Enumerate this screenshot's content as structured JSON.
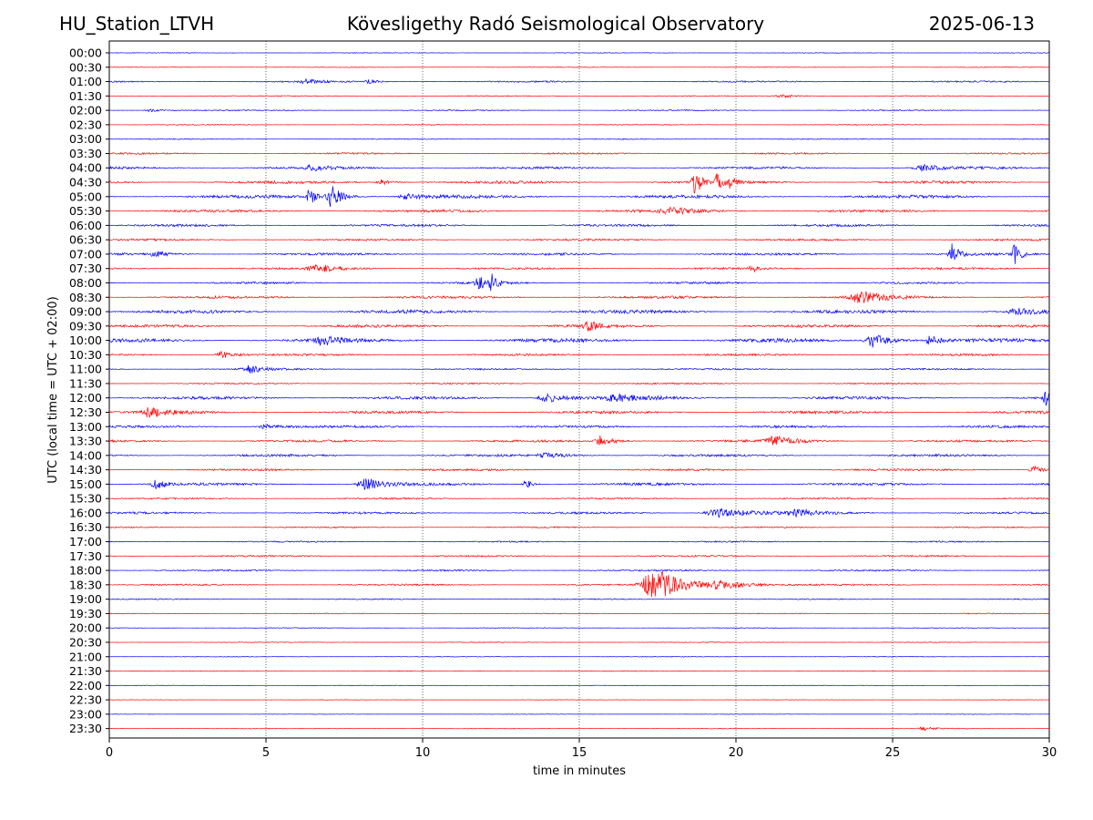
{
  "header": {
    "station": "HU_Station_LTVH",
    "observatory": "Kövesligethy Radó Seismological Observatory",
    "date": "2025-06-13"
  },
  "chart_data": {
    "type": "line",
    "subtype": "helicorder",
    "xlabel": "time in minutes",
    "ylabel": "UTC (local time = UTC + 02:00)",
    "xlim": [
      0,
      30
    ],
    "x_ticks": [
      0,
      5,
      10,
      15,
      20,
      25,
      30
    ],
    "x_tick_labels": [
      "0",
      "5",
      "10",
      "15",
      "20",
      "25",
      "30"
    ],
    "vertical_gridlines_at_minutes": [
      5,
      10,
      15,
      20,
      25
    ],
    "grid": "vertical dotted",
    "row_interval_minutes": 30,
    "row_labels": [
      "00:00",
      "00:30",
      "01:00",
      "01:30",
      "02:00",
      "02:30",
      "03:00",
      "03:30",
      "04:00",
      "04:30",
      "05:00",
      "05:30",
      "06:00",
      "06:30",
      "07:00",
      "07:30",
      "08:00",
      "08:30",
      "09:00",
      "09:30",
      "10:00",
      "10:30",
      "11:00",
      "11:30",
      "12:00",
      "12:30",
      "13:00",
      "13:30",
      "14:00",
      "14:30",
      "15:00",
      "15:30",
      "16:00",
      "16:30",
      "17:00",
      "17:30",
      "18:00",
      "18:30",
      "19:00",
      "19:30",
      "20:00",
      "20:30",
      "21:00",
      "21:30",
      "22:00",
      "22:30",
      "23:00",
      "23:30"
    ],
    "trace_colors": [
      "#0000ff",
      "#ff0000"
    ],
    "row_noise_amplitude": [
      0.3,
      0.3,
      0.7,
      0.4,
      0.5,
      0.4,
      0.4,
      0.7,
      1.0,
      1.2,
      1.4,
      1.1,
      1.0,
      0.9,
      1.0,
      0.9,
      0.9,
      1.1,
      1.5,
      1.2,
      1.6,
      0.9,
      0.7,
      0.7,
      1.2,
      1.2,
      1.0,
      1.0,
      1.0,
      0.9,
      1.1,
      0.7,
      0.9,
      0.6,
      0.6,
      0.7,
      0.7,
      0.7,
      0.5,
      0.4,
      0.3,
      0.3,
      0.3,
      0.3,
      0.2,
      0.2,
      0.2,
      0.3
    ],
    "events": [
      {
        "row": 2,
        "minute": 6.3,
        "amplitude": 2.5,
        "duration": 0.6
      },
      {
        "row": 2,
        "minute": 8.3,
        "amplitude": 2.5,
        "duration": 0.4
      },
      {
        "row": 3,
        "minute": 21.5,
        "amplitude": 2.0,
        "duration": 0.8
      },
      {
        "row": 4,
        "minute": 1.3,
        "amplitude": 2.0,
        "duration": 0.5
      },
      {
        "row": 8,
        "minute": 6.5,
        "amplitude": 3.0,
        "duration": 0.7
      },
      {
        "row": 8,
        "minute": 26.0,
        "amplitude": 3.0,
        "duration": 1.0
      },
      {
        "row": 9,
        "minute": 18.7,
        "amplitude": 16.0,
        "duration": 0.3
      },
      {
        "row": 9,
        "minute": 19.4,
        "amplitude": 9.0,
        "duration": 0.25
      },
      {
        "row": 9,
        "minute": 19.8,
        "amplitude": 8.0,
        "duration": 0.25
      },
      {
        "row": 9,
        "minute": 8.7,
        "amplitude": 3.0,
        "duration": 0.5
      },
      {
        "row": 10,
        "minute": 6.4,
        "amplitude": 10.0,
        "duration": 0.3
      },
      {
        "row": 10,
        "minute": 7.1,
        "amplitude": 13.0,
        "duration": 0.5
      },
      {
        "row": 10,
        "minute": 9.5,
        "amplitude": 3.0,
        "duration": 0.8
      },
      {
        "row": 11,
        "minute": 18.0,
        "amplitude": 3.0,
        "duration": 1.5
      },
      {
        "row": 14,
        "minute": 1.5,
        "amplitude": 3.0,
        "duration": 0.6
      },
      {
        "row": 14,
        "minute": 26.9,
        "amplitude": 12.0,
        "duration": 0.3
      },
      {
        "row": 14,
        "minute": 28.9,
        "amplitude": 11.0,
        "duration": 0.3
      },
      {
        "row": 15,
        "minute": 6.7,
        "amplitude": 4.0,
        "duration": 1.0
      },
      {
        "row": 15,
        "minute": 20.5,
        "amplitude": 5.0,
        "duration": 0.2
      },
      {
        "row": 16,
        "minute": 11.8,
        "amplitude": 7.0,
        "duration": 0.4
      },
      {
        "row": 16,
        "minute": 12.2,
        "amplitude": 9.0,
        "duration": 0.3
      },
      {
        "row": 17,
        "minute": 24.0,
        "amplitude": 6.0,
        "duration": 1.2
      },
      {
        "row": 18,
        "minute": 29.0,
        "amplitude": 3.0,
        "duration": 1.0
      },
      {
        "row": 19,
        "minute": 15.3,
        "amplitude": 5.0,
        "duration": 0.6
      },
      {
        "row": 20,
        "minute": 6.8,
        "amplitude": 5.0,
        "duration": 0.7
      },
      {
        "row": 20,
        "minute": 24.4,
        "amplitude": 8.0,
        "duration": 0.8
      },
      {
        "row": 20,
        "minute": 26.2,
        "amplitude": 7.0,
        "duration": 0.4
      },
      {
        "row": 21,
        "minute": 3.6,
        "amplitude": 4.0,
        "duration": 0.6
      },
      {
        "row": 22,
        "minute": 4.5,
        "amplitude": 4.0,
        "duration": 0.8
      },
      {
        "row": 24,
        "minute": 14.0,
        "amplitude": 5.0,
        "duration": 1.0
      },
      {
        "row": 24,
        "minute": 16.2,
        "amplitude": 4.0,
        "duration": 1.2
      },
      {
        "row": 24,
        "minute": 29.9,
        "amplitude": 8.0,
        "duration": 0.3
      },
      {
        "row": 25,
        "minute": 1.3,
        "amplitude": 5.0,
        "duration": 0.8
      },
      {
        "row": 26,
        "minute": 5.0,
        "amplitude": 2.5,
        "duration": 1.0
      },
      {
        "row": 27,
        "minute": 15.7,
        "amplitude": 6.0,
        "duration": 0.6
      },
      {
        "row": 27,
        "minute": 21.3,
        "amplitude": 5.0,
        "duration": 1.0
      },
      {
        "row": 28,
        "minute": 14.0,
        "amplitude": 3.0,
        "duration": 1.0
      },
      {
        "row": 29,
        "minute": 29.5,
        "amplitude": 5.0,
        "duration": 0.4
      },
      {
        "row": 30,
        "minute": 1.5,
        "amplitude": 5.0,
        "duration": 0.5
      },
      {
        "row": 30,
        "minute": 8.2,
        "amplitude": 7.0,
        "duration": 0.8
      },
      {
        "row": 30,
        "minute": 13.3,
        "amplitude": 6.0,
        "duration": 0.3
      },
      {
        "row": 32,
        "minute": 19.5,
        "amplitude": 5.0,
        "duration": 1.5
      },
      {
        "row": 32,
        "minute": 22.0,
        "amplitude": 3.0,
        "duration": 1.2
      },
      {
        "row": 37,
        "minute": 17.4,
        "amplitude": 20.0,
        "duration": 1.2
      },
      {
        "row": 37,
        "minute": 19.5,
        "amplitude": 4.0,
        "duration": 1.5
      },
      {
        "row": 47,
        "minute": 26.0,
        "amplitude": 2.0,
        "duration": 0.6
      }
    ]
  }
}
